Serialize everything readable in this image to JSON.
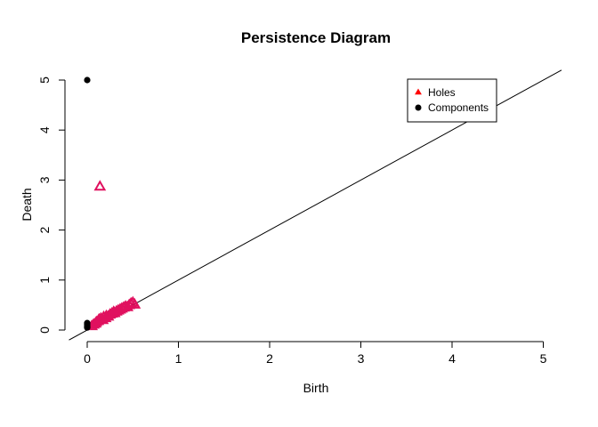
{
  "chart_data": {
    "type": "scatter",
    "title": "Persistence Diagram",
    "xlabel": "Birth",
    "ylabel": "Death",
    "xlim": [
      -0.2,
      5.2
    ],
    "ylim": [
      -0.1,
      5.2
    ],
    "xticks": [
      0,
      1,
      2,
      3,
      4,
      5
    ],
    "yticks": [
      0,
      1,
      2,
      3,
      4,
      5
    ],
    "grid": false,
    "legend_position": "top-right",
    "diagonal": {
      "from": [
        -0.2,
        -0.2
      ],
      "to": [
        5.2,
        5.2
      ],
      "color": "#000000"
    },
    "series": [
      {
        "name": "Holes",
        "marker": "triangle",
        "color": "#E0115F",
        "legend_color": "#FF0000",
        "points": [
          [
            0.14,
            2.86
          ],
          [
            0.05,
            0.07
          ],
          [
            0.07,
            0.1
          ],
          [
            0.09,
            0.12
          ],
          [
            0.1,
            0.15
          ],
          [
            0.12,
            0.17
          ],
          [
            0.13,
            0.2
          ],
          [
            0.15,
            0.22
          ],
          [
            0.17,
            0.19
          ],
          [
            0.18,
            0.25
          ],
          [
            0.2,
            0.23
          ],
          [
            0.21,
            0.27
          ],
          [
            0.23,
            0.26
          ],
          [
            0.25,
            0.3
          ],
          [
            0.27,
            0.32
          ],
          [
            0.29,
            0.35
          ],
          [
            0.3,
            0.33
          ],
          [
            0.32,
            0.36
          ],
          [
            0.34,
            0.38
          ],
          [
            0.36,
            0.4
          ],
          [
            0.38,
            0.42
          ],
          [
            0.4,
            0.44
          ],
          [
            0.42,
            0.46
          ],
          [
            0.44,
            0.45
          ],
          [
            0.46,
            0.49
          ],
          [
            0.48,
            0.52
          ],
          [
            0.5,
            0.54
          ],
          [
            0.52,
            0.5
          ]
        ]
      },
      {
        "name": "Components",
        "marker": "circle",
        "color": "#000000",
        "legend_color": "#000000",
        "points": [
          [
            0,
            5.0
          ],
          [
            0,
            0.14
          ],
          [
            0,
            0.11
          ],
          [
            0,
            0.09
          ],
          [
            0,
            0.07
          ],
          [
            0,
            0.05
          ]
        ]
      }
    ]
  }
}
